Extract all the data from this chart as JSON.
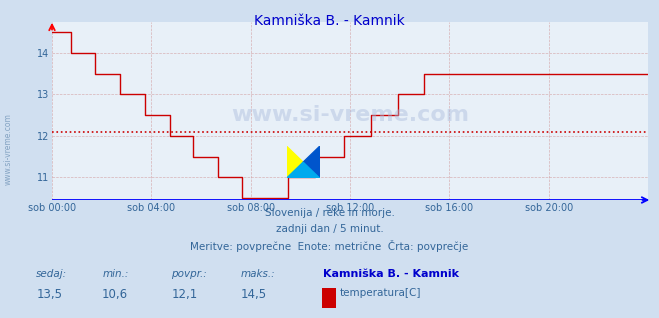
{
  "title": "Kamniška B. - Kamnik",
  "title_color": "#0000cc",
  "bg_color": "#d0dff0",
  "plot_bg_color": "#e8f0f8",
  "line_color": "#cc0000",
  "avg_line_color": "#cc0000",
  "avg_value": 12.1,
  "ylim": [
    10.45,
    14.75
  ],
  "yticks": [
    11,
    12,
    13,
    14
  ],
  "tick_color": "#336699",
  "grid_color": "#cc8888",
  "watermark_text": "www.si-vreme.com",
  "side_label": "www.si-vreme.com",
  "subtitle1": "Slovenija / reke in morje.",
  "subtitle2": "zadnji dan / 5 minut.",
  "subtitle3": "Meritve: povprečne  Enote: metrične  Črta: povprečje",
  "subtitle_color": "#336699",
  "footer_labels": [
    "sedaj:",
    "min.:",
    "povpr.:",
    "maks.:"
  ],
  "footer_values": [
    "13,5",
    "10,6",
    "12,1",
    "14,5"
  ],
  "footer_series_name": "Kamniška B. - Kamnik",
  "footer_series_label": "temperatura[C]",
  "footer_series_color": "#cc0000",
  "xtick_labels": [
    "sob 00:00",
    "sob 04:00",
    "sob 08:00",
    "sob 12:00",
    "sob 16:00",
    "sob 20:00"
  ],
  "xtick_positions": [
    0,
    48,
    96,
    144,
    192,
    240
  ],
  "total_points": 289
}
